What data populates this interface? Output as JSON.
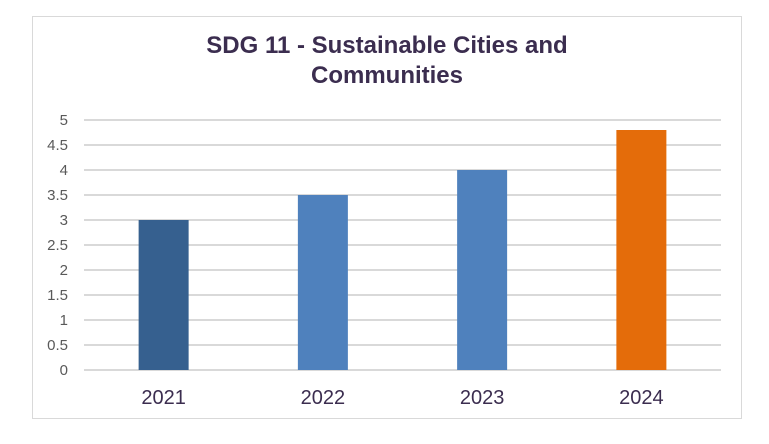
{
  "chart_data": {
    "type": "bar",
    "title_lines": [
      "SDG 11 - Sustainable Cities and",
      "Communities"
    ],
    "title": "SDG 11 - Sustainable Cities and Communities",
    "categories": [
      "2021",
      "2022",
      "2023",
      "2024"
    ],
    "values": [
      3.0,
      3.5,
      4.0,
      4.8
    ],
    "bar_colors": [
      "#36608f",
      "#4f81bd",
      "#4f81bd",
      "#e46c0a"
    ],
    "xlabel": "",
    "ylabel": "",
    "ylim": [
      0,
      5
    ],
    "yticks": [
      "0",
      "0.5",
      "1",
      "1.5",
      "2",
      "2.5",
      "3",
      "3.5",
      "4",
      "4.5",
      "5"
    ],
    "ytick_values": [
      0,
      0.5,
      1,
      1.5,
      2,
      2.5,
      3,
      3.5,
      4,
      4.5,
      5
    ],
    "grid": true,
    "legend": "none",
    "gridline_color": "#d9d9d9"
  }
}
